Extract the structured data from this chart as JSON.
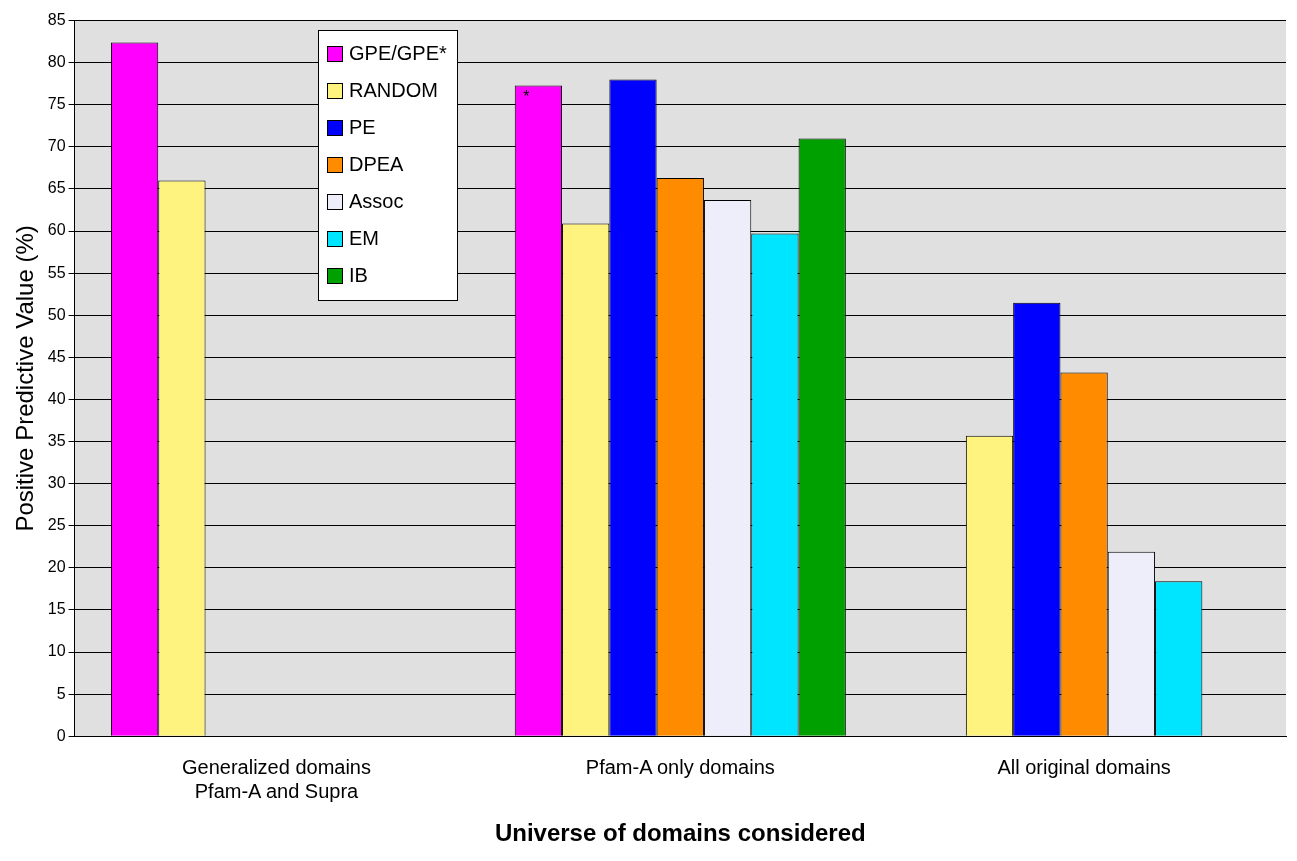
{
  "chart_data": {
    "type": "bar",
    "xlabel": "Universe of domains considered",
    "ylabel": "Positive Predictive Value (%)",
    "categories": [
      "Generalized domains\nPfam-A and Supra",
      "Pfam-A only domains",
      "All original domains"
    ],
    "series": [
      {
        "name": "GPE/GPE*",
        "color": "#ff00ff",
        "values": [
          82.4,
          77.3,
          null
        ]
      },
      {
        "name": "RANDOM",
        "color": "#fff380",
        "values": [
          66.0,
          60.9,
          35.7
        ]
      },
      {
        "name": "PE",
        "color": "#0000ff",
        "values": [
          null,
          78.0,
          51.5
        ]
      },
      {
        "name": "DPEA",
        "color": "#ff8c00",
        "values": [
          null,
          66.3,
          43.2
        ]
      },
      {
        "name": "Assoc",
        "color": "#eeeefa",
        "values": [
          null,
          63.7,
          21.9
        ]
      },
      {
        "name": "EM",
        "color": "#00e5ff",
        "values": [
          null,
          59.7,
          18.4
        ]
      },
      {
        "name": "IB",
        "color": "#00a000",
        "values": [
          null,
          71.0,
          null
        ]
      }
    ],
    "ylim": [
      0,
      85
    ],
    "yticks": [
      0,
      5,
      10,
      15,
      20,
      25,
      30,
      35,
      40,
      45,
      50,
      55,
      60,
      65,
      70,
      75,
      80,
      85
    ],
    "grid": "y",
    "legend": "top left",
    "annotations": [
      "*"
    ]
  }
}
